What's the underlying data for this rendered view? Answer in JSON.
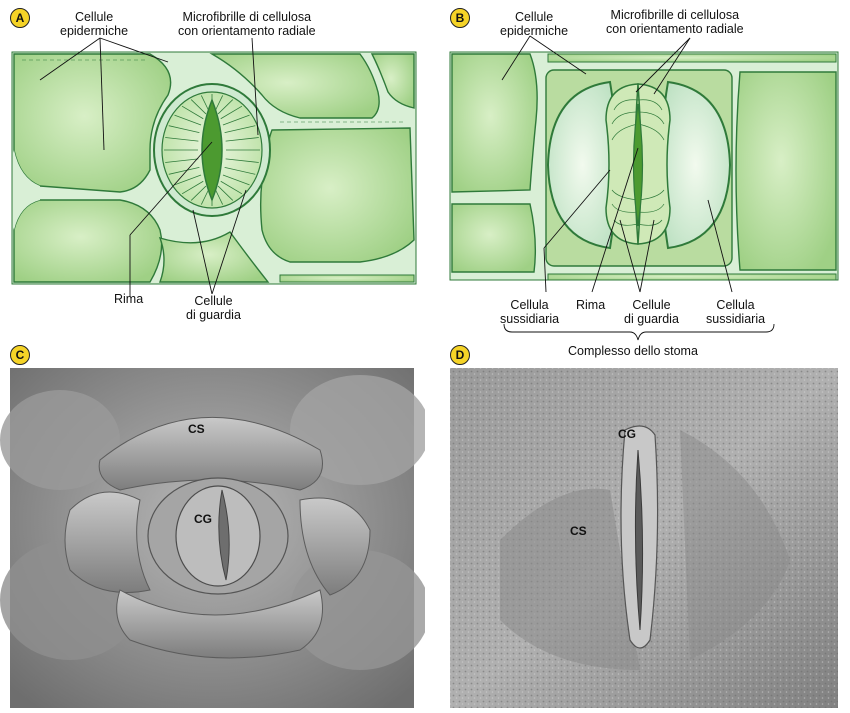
{
  "panels": {
    "a": {
      "badge": "A",
      "labels": {
        "epidermal": [
          "Cellule",
          "epidermiche"
        ],
        "microfibrils": [
          "Microfibrille di cellulosa",
          "con orientamento radiale"
        ],
        "pore": "Rima",
        "guard": [
          "Cellule",
          "di guardia"
        ]
      }
    },
    "b": {
      "badge": "B",
      "labels": {
        "epidermal": [
          "Cellule",
          "epidermiche"
        ],
        "microfibrils": [
          "Microfibrille di cellulosa",
          "con orientamento radiale"
        ],
        "subsidiary_left": [
          "Cellula",
          "sussidiaria"
        ],
        "pore": "Rima",
        "guard": [
          "Cellule",
          "di guardia"
        ],
        "subsidiary_right": [
          "Cellula",
          "sussidiaria"
        ],
        "complex": "Complesso dello stoma"
      }
    },
    "c": {
      "badge": "C",
      "labels": {
        "subsidiary": "CS",
        "guard": "CG"
      }
    },
    "d": {
      "badge": "D",
      "labels": {
        "subsidiary": "CS",
        "guard": "CG"
      }
    }
  },
  "colors": {
    "cell_fill": "#a9d68f",
    "cell_highlight": "#d8efc6",
    "wall": "#d9efd6",
    "outline": "#2f7a3a",
    "pore": "#4c9a30",
    "badge": "#f5d327",
    "sem": "#8c8c8c"
  }
}
